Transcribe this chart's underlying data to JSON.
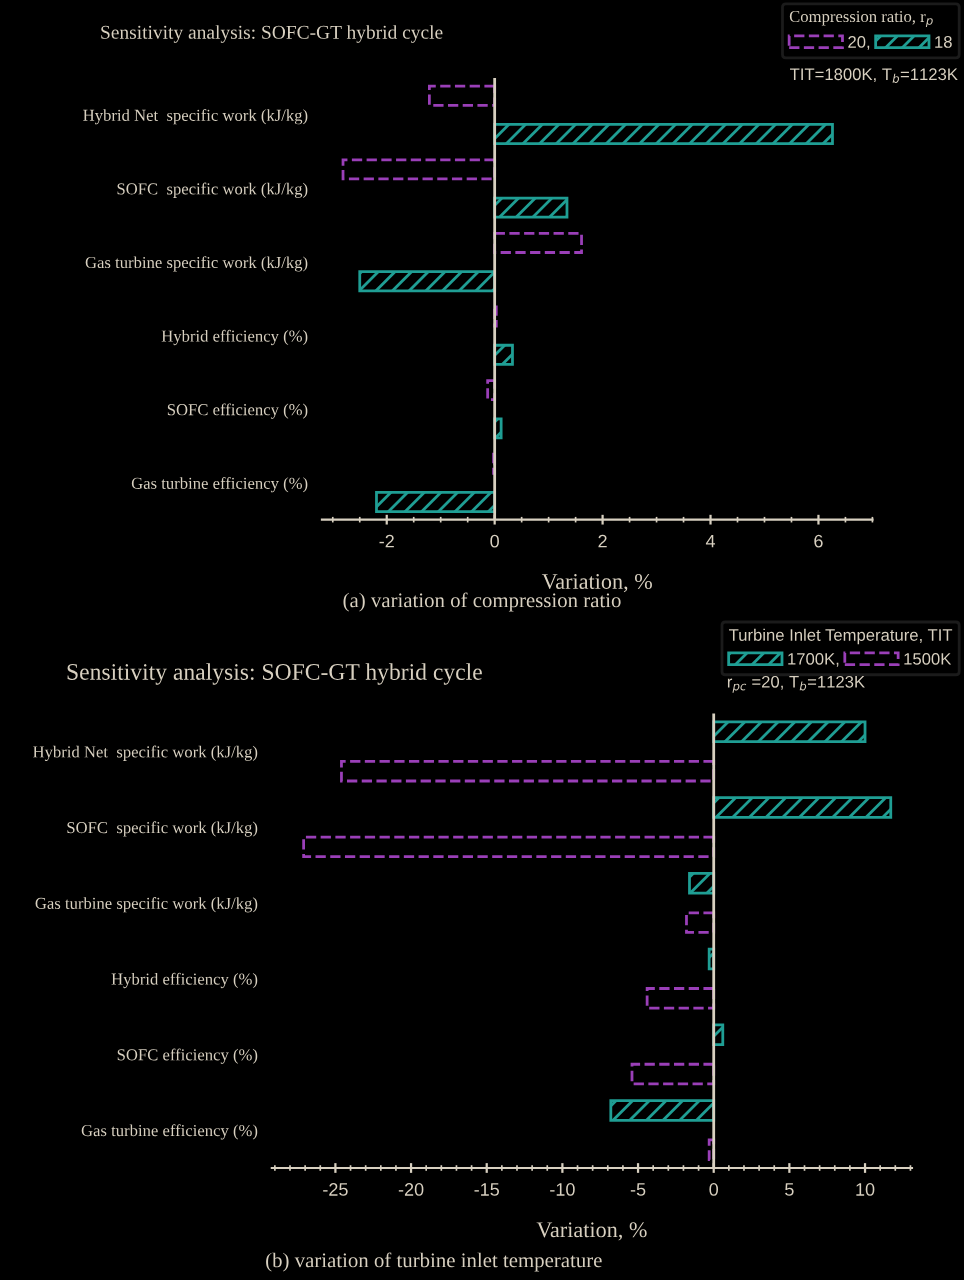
{
  "chart_data": [
    {
      "type": "bar",
      "orientation": "horizontal",
      "title": "Sensitivity analysis: SOFC-GT hybrid cycle",
      "xlabel": "Variation, %",
      "legend_title": "Compression ratio, r$_{p}$",
      "legend": "top right",
      "categories": [
        "Hybrid Net  specific work (kJ/kg)",
        "SOFC  specific work (kJ/kg)",
        "Gas turbine specific work (kJ/kg)",
        "Hybrid efficiency (%)",
        "SOFC efficiency (%)",
        "Gas turbine efficiency (%)"
      ],
      "series": [
        {
          "name": "20,",
          "color": "#9a3fb8",
          "values": [
            -1.21,
            -2.81,
            1.61,
            0.03,
            -0.13,
            -0.02
          ]
        },
        {
          "name": "18",
          "color": "#1f9e94",
          "values": [
            6.26,
            1.34,
            -2.5,
            0.33,
            0.12,
            -2.19
          ]
        }
      ],
      "xlim": [
        -3.2,
        7
      ],
      "xticks": [
        -2,
        0,
        2,
        4,
        6
      ],
      "grid": false,
      "ref_lines": [
        {
          "axis": "x",
          "value": 0,
          "color": "#d8d0c0"
        }
      ],
      "annotations": [
        "TIT=1800K, T$_{b}$=1123K",
        "(a) variation of compression ratio"
      ]
    },
    {
      "type": "bar",
      "orientation": "horizontal",
      "title": "Sensitivity analysis: SOFC-GT hybrid cycle",
      "xlabel": "Variation, %",
      "legend_title": "Turbine Inlet Temperature, TIT",
      "legend": "top right",
      "categories": [
        "Hybrid Net  specific work (kJ/kg)",
        "SOFC  specific work (kJ/kg)",
        "Gas turbine specific work (kJ/kg)",
        "Hybrid efficiency (%)",
        "SOFC efficiency (%)",
        "Gas turbine efficiency (%)"
      ],
      "series": [
        {
          "name": "1700K,",
          "color": "#1f9e94",
          "values": [
            10.0,
            11.7,
            -1.6,
            -0.3,
            0.6,
            -6.8
          ]
        },
        {
          "name": "1500K",
          "color": "#9a3fb8",
          "values": [
            -24.6,
            -27.1,
            -1.8,
            -4.4,
            -5.4,
            -0.3
          ]
        }
      ],
      "xlim": [
        -29.2,
        13.1
      ],
      "xticks": [
        -25,
        -20,
        -15,
        -10,
        -5,
        0,
        5,
        10
      ],
      "grid": false,
      "ref_lines": [
        {
          "axis": "x",
          "value": 0,
          "color": "#d8d0c0"
        }
      ],
      "annotations": [
        "r$_{pc}$ =20, T$_{b}$=1123K",
        "(b) variation of turbine inlet temperature"
      ]
    }
  ]
}
